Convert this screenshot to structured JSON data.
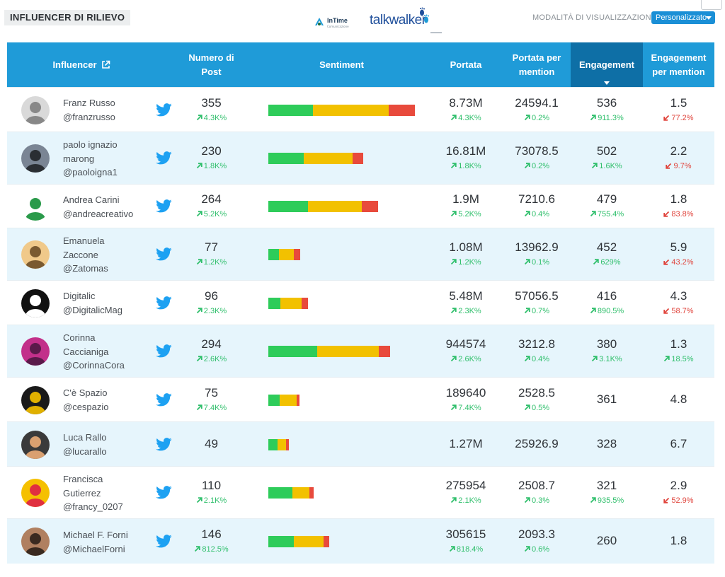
{
  "header": {
    "title": "INFLUENCER DI RILIEVO",
    "logo_intime": "InTime",
    "logo_intime_sub": "Comunicazione",
    "logo_talkwalker": "talkwalker",
    "view_mode_label": "MODALITÀ DI VISUALIZZAZIONE",
    "view_mode_value": "Personalizzato"
  },
  "columns": {
    "influencer": "Influencer",
    "posts": [
      "Numero di",
      "Post"
    ],
    "sentiment": "Sentiment",
    "reach": "Portata",
    "reach_per_mention": [
      "Portata per",
      "mention"
    ],
    "engagement": "Engagement",
    "engagement_per_mention": [
      "Engagement",
      "per mention"
    ]
  },
  "colors": {
    "header_bg": "#1f9bd8",
    "active_header_bg": "#0e6fa6",
    "row_alt_bg": "#e6f5fc",
    "positive": "#2fbf6b",
    "negative": "#e0443c",
    "sentiment_positive": "#2ecc5a",
    "sentiment_neutral": "#f2c100",
    "sentiment_negative": "#e84a3c",
    "twitter": "#1da1f2"
  },
  "rows": [
    {
      "name_lines": [
        "Franz Russo",
        "@franzrusso"
      ],
      "network": "twitter-icon",
      "posts": "355",
      "posts_chg": "4.3K%",
      "posts_dir": "up",
      "sentiment": [
        63,
        107,
        37
      ],
      "reach": "8.73M",
      "reach_chg": "4.3K%",
      "reach_dir": "up",
      "rpm": "24594.1",
      "rpm_chg": "0.2%",
      "rpm_dir": "up",
      "eng": "536",
      "eng_chg": "911.3%",
      "eng_dir": "up",
      "epm": "1.5",
      "epm_chg": "77.2%",
      "epm_dir": "down"
    },
    {
      "name_lines": [
        "paolo ignazio",
        "marong",
        "@paoloigna1"
      ],
      "network": "twitter-icon",
      "posts": "230",
      "posts_chg": "1.8K%",
      "posts_dir": "up",
      "sentiment": [
        50,
        69,
        15
      ],
      "reach": "16.81M",
      "reach_chg": "1.8K%",
      "reach_dir": "up",
      "rpm": "73078.5",
      "rpm_chg": "0.2%",
      "rpm_dir": "up",
      "eng": "502",
      "eng_chg": "1.6K%",
      "eng_dir": "up",
      "epm": "2.2",
      "epm_chg": "9.7%",
      "epm_dir": "down"
    },
    {
      "name_lines": [
        "Andrea Carini",
        "@andreacreativo"
      ],
      "network": "twitter-icon",
      "posts": "264",
      "posts_chg": "5.2K%",
      "posts_dir": "up",
      "sentiment": [
        56,
        76,
        23
      ],
      "reach": "1.9M",
      "reach_chg": "5.2K%",
      "reach_dir": "up",
      "rpm": "7210.6",
      "rpm_chg": "0.4%",
      "rpm_dir": "up",
      "eng": "479",
      "eng_chg": "755.4%",
      "eng_dir": "up",
      "epm": "1.8",
      "epm_chg": "83.8%",
      "epm_dir": "down"
    },
    {
      "name_lines": [
        "Emanuela",
        "Zaccone",
        "@Zatomas"
      ],
      "network": "twitter-icon",
      "posts": "77",
      "posts_chg": "1.2K%",
      "posts_dir": "up",
      "sentiment": [
        15,
        21,
        9
      ],
      "reach": "1.08M",
      "reach_chg": "1.2K%",
      "reach_dir": "up",
      "rpm": "13962.9",
      "rpm_chg": "0.1%",
      "rpm_dir": "up",
      "eng": "452",
      "eng_chg": "629%",
      "eng_dir": "up",
      "epm": "5.9",
      "epm_chg": "43.2%",
      "epm_dir": "down"
    },
    {
      "name_lines": [
        "Digitalic",
        "@DigitalicMag"
      ],
      "network": "twitter-icon",
      "posts": "96",
      "posts_chg": "2.3K%",
      "posts_dir": "up",
      "sentiment": [
        17,
        30,
        9
      ],
      "reach": "5.48M",
      "reach_chg": "2.3K%",
      "reach_dir": "up",
      "rpm": "57056.5",
      "rpm_chg": "0.7%",
      "rpm_dir": "up",
      "eng": "416",
      "eng_chg": "890.5%",
      "eng_dir": "up",
      "epm": "4.3",
      "epm_chg": "58.7%",
      "epm_dir": "down"
    },
    {
      "name_lines": [
        "Corinna",
        "Caccianiga",
        "@CorinnaCora"
      ],
      "network": "twitter-icon",
      "posts": "294",
      "posts_chg": "2.6K%",
      "posts_dir": "up",
      "sentiment": [
        69,
        87,
        16
      ],
      "reach": "944574",
      "reach_chg": "2.6K%",
      "reach_dir": "up",
      "rpm": "3212.8",
      "rpm_chg": "0.4%",
      "rpm_dir": "up",
      "eng": "380",
      "eng_chg": "3.1K%",
      "eng_dir": "up",
      "epm": "1.3",
      "epm_chg": "18.5%",
      "epm_dir": "up"
    },
    {
      "name_lines": [
        "C'è Spazio",
        "@cespazio"
      ],
      "network": "twitter-icon",
      "posts": "75",
      "posts_chg": "7.4K%",
      "posts_dir": "up",
      "sentiment": [
        16,
        24,
        4
      ],
      "reach": "189640",
      "reach_chg": "7.4K%",
      "reach_dir": "up",
      "rpm": "2528.5",
      "rpm_chg": "0.5%",
      "rpm_dir": "up",
      "eng": "361",
      "eng_chg": "",
      "eng_dir": "",
      "epm": "4.8",
      "epm_chg": "",
      "epm_dir": ""
    },
    {
      "name_lines": [
        "Luca Rallo",
        "@lucarallo"
      ],
      "network": "twitter-icon",
      "posts": "49",
      "posts_chg": "",
      "posts_dir": "",
      "sentiment": [
        13,
        12,
        4
      ],
      "reach": "1.27M",
      "reach_chg": "",
      "reach_dir": "",
      "rpm": "25926.9",
      "rpm_chg": "",
      "rpm_dir": "",
      "eng": "328",
      "eng_chg": "",
      "eng_dir": "",
      "epm": "6.7",
      "epm_chg": "",
      "epm_dir": ""
    },
    {
      "name_lines": [
        "Francisca",
        "Gutierrez",
        "@francy_0207"
      ],
      "network": "twitter-icon",
      "posts": "110",
      "posts_chg": "2.1K%",
      "posts_dir": "up",
      "sentiment": [
        34,
        24,
        6
      ],
      "reach": "275954",
      "reach_chg": "2.1K%",
      "reach_dir": "up",
      "rpm": "2508.7",
      "rpm_chg": "0.3%",
      "rpm_dir": "up",
      "eng": "321",
      "eng_chg": "935.5%",
      "eng_dir": "up",
      "epm": "2.9",
      "epm_chg": "52.9%",
      "epm_dir": "down"
    },
    {
      "name_lines": [
        "Michael F. Forni",
        "@MichaelForni"
      ],
      "network": "twitter-icon",
      "posts": "146",
      "posts_chg": "812.5%",
      "posts_dir": "up",
      "sentiment": [
        36,
        42,
        8
      ],
      "reach": "305615",
      "reach_chg": "818.4%",
      "reach_dir": "up",
      "rpm": "2093.3",
      "rpm_chg": "0.6%",
      "rpm_dir": "up",
      "eng": "260",
      "eng_chg": "",
      "eng_dir": "",
      "epm": "1.8",
      "epm_chg": "",
      "epm_dir": ""
    }
  ]
}
